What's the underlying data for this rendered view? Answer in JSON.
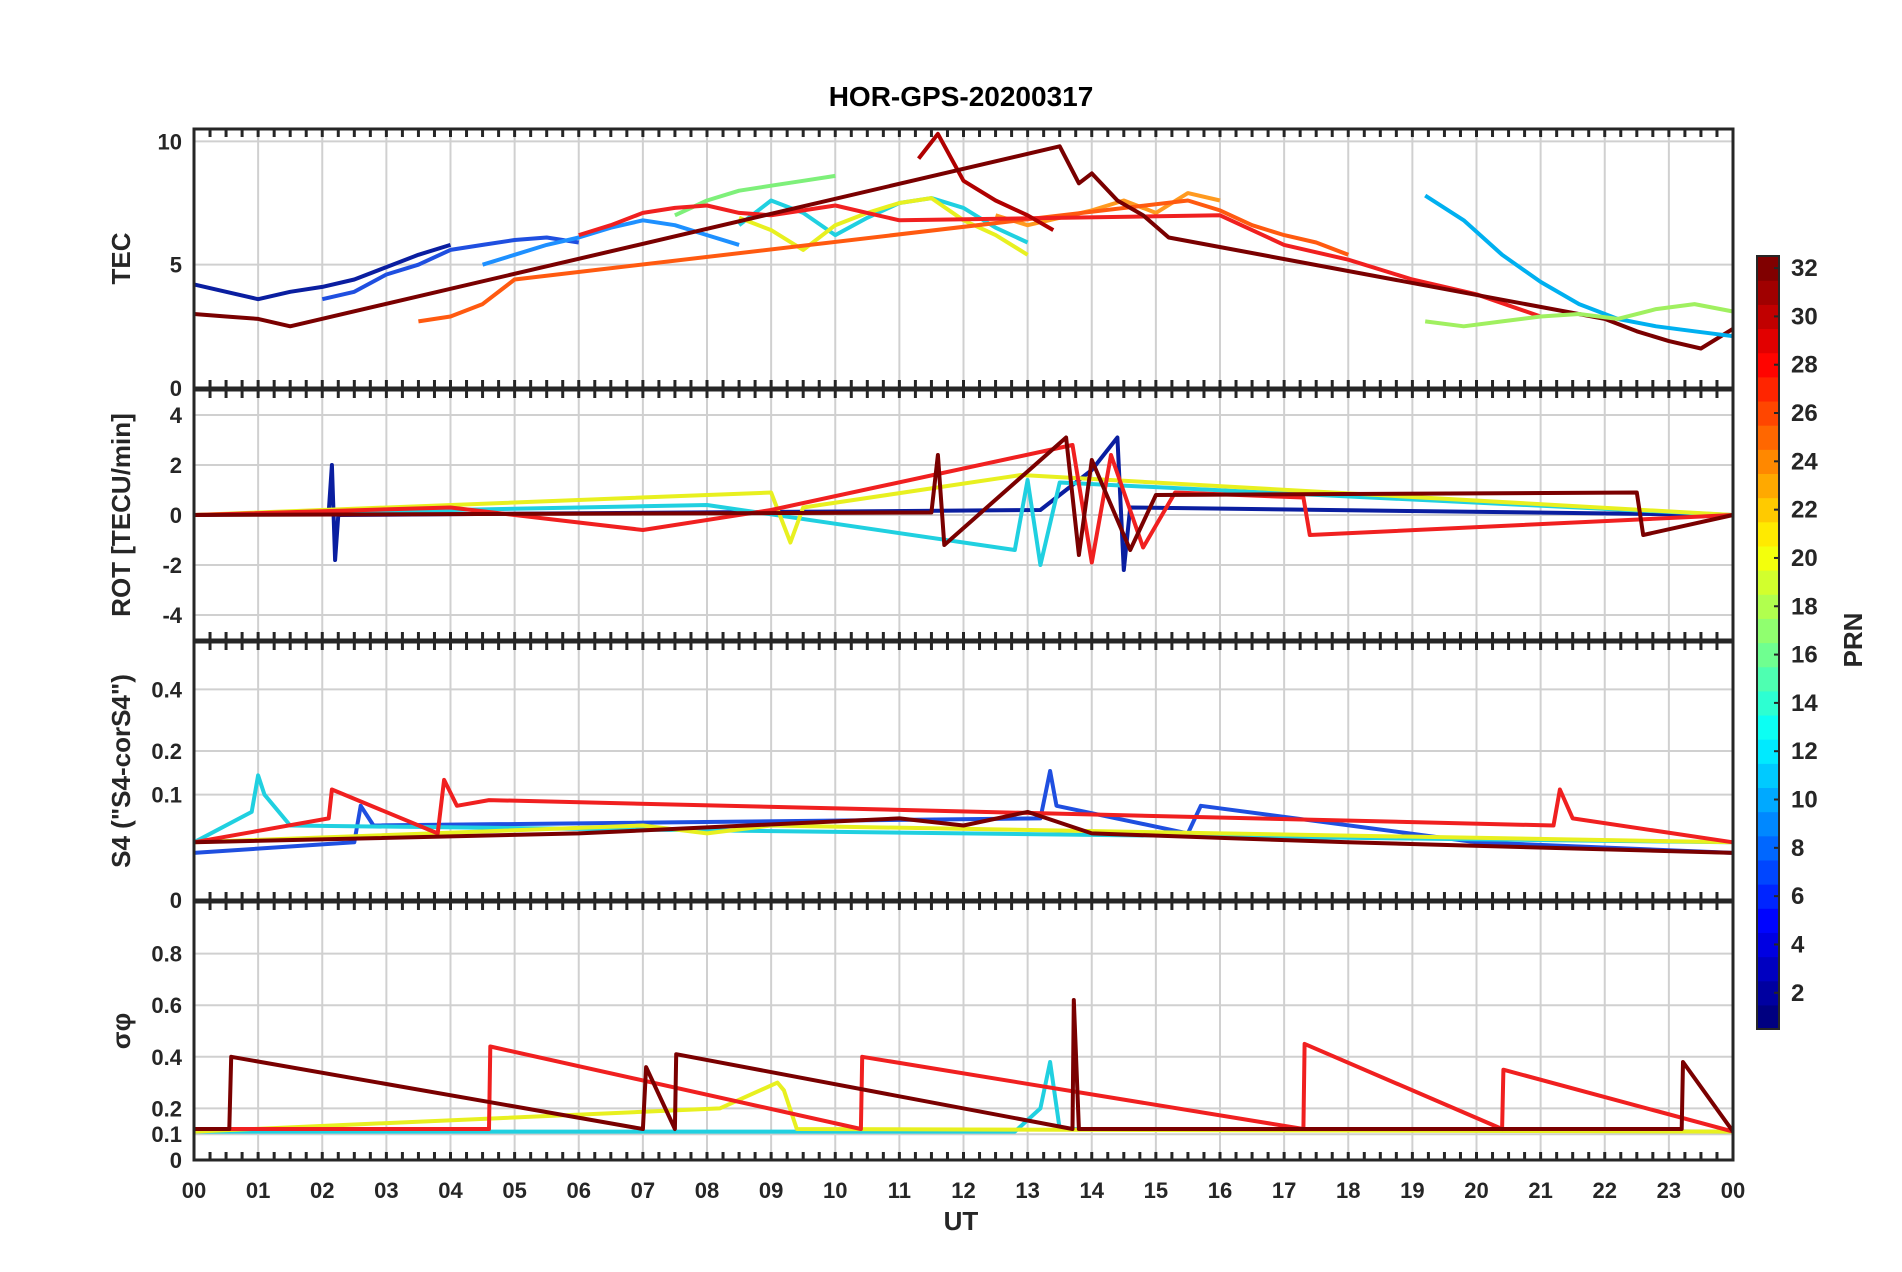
{
  "figure": {
    "title": "HOR-GPS-20200317",
    "xlabel": "UT"
  },
  "chart_data": [
    {
      "type": "line",
      "panel": "tec",
      "ylabel": "TEC",
      "ylim": [
        0,
        10.5
      ],
      "yticks": [
        0,
        5,
        10
      ],
      "xlim": [
        0,
        24
      ],
      "series": [
        {
          "name": "PRN 2",
          "color": "#0a1ea0",
          "x": [
            0,
            0.5,
            1,
            1.5,
            2,
            2.5,
            3,
            3.5,
            4
          ],
          "y": [
            4.2,
            3.9,
            3.6,
            3.9,
            4.1,
            4.4,
            4.9,
            5.4,
            5.8
          ]
        },
        {
          "name": "PRN 5",
          "color": "#1f4fe0",
          "x": [
            2,
            2.5,
            3,
            3.5,
            4,
            4.5,
            5,
            5.5,
            6
          ],
          "y": [
            3.6,
            3.9,
            4.6,
            5.0,
            5.6,
            5.8,
            6.0,
            6.1,
            5.9
          ]
        },
        {
          "name": "PRN 9",
          "color": "#1e90ff",
          "x": [
            4.5,
            5,
            5.5,
            6,
            6.5,
            7,
            7.5,
            8,
            8.5
          ],
          "y": [
            5.0,
            5.4,
            5.8,
            6.1,
            6.5,
            6.8,
            6.6,
            6.2,
            5.8
          ]
        },
        {
          "name": "PRN 13",
          "color": "#20d0e0",
          "x": [
            8.5,
            9,
            9.5,
            10,
            10.5,
            11,
            11.5,
            12,
            12.5,
            13
          ],
          "y": [
            6.6,
            7.6,
            7.1,
            6.2,
            6.9,
            7.5,
            7.7,
            7.3,
            6.5,
            5.9
          ]
        },
        {
          "name": "PRN 17",
          "color": "#7ef07a",
          "x": [
            7.5,
            8,
            8.5,
            9,
            9.5,
            10
          ],
          "y": [
            7.0,
            7.6,
            8.0,
            8.2,
            8.4,
            8.6
          ]
        },
        {
          "name": "PRN 20",
          "color": "#e8f020",
          "x": [
            8.5,
            9,
            9.5,
            10,
            10.5,
            11,
            11.5,
            12,
            12.5,
            13
          ],
          "y": [
            6.9,
            6.4,
            5.6,
            6.6,
            7.1,
            7.5,
            7.7,
            6.8,
            6.2,
            5.4
          ]
        },
        {
          "name": "PRN 23",
          "color": "#ff9a20",
          "x": [
            12.5,
            13,
            13.5,
            14,
            14.5,
            15,
            15.5,
            16
          ],
          "y": [
            7.0,
            6.6,
            6.9,
            7.2,
            7.6,
            7.1,
            7.9,
            7.6
          ]
        },
        {
          "name": "PRN 26",
          "color": "#ff5a10",
          "x": [
            3.5,
            4,
            4.5,
            5,
            15.5,
            16,
            16.5,
            17,
            17.5,
            18
          ],
          "y": [
            2.7,
            2.9,
            3.4,
            4.4,
            7.6,
            7.2,
            6.6,
            6.2,
            5.9,
            5.4
          ]
        },
        {
          "name": "PRN 28",
          "color": "#f02020",
          "x": [
            6,
            6.5,
            7,
            7.5,
            8,
            8.5,
            9,
            9.5,
            10,
            10.5,
            11,
            16,
            17,
            18,
            19,
            20,
            21
          ],
          "y": [
            6.2,
            6.6,
            7.1,
            7.3,
            7.4,
            7.1,
            7.0,
            7.2,
            7.4,
            7.1,
            6.8,
            7.0,
            5.8,
            5.2,
            4.4,
            3.8,
            2.9
          ]
        },
        {
          "name": "PRN 31",
          "color": "#b00000",
          "x": [
            11.3,
            11.6,
            12,
            12.5,
            13,
            13.4
          ],
          "y": [
            9.3,
            10.3,
            8.4,
            7.6,
            7.0,
            6.4
          ]
        },
        {
          "name": "PRN 32",
          "color": "#7a0000",
          "x": [
            0,
            0.5,
            1,
            1.5,
            13.5,
            13.8,
            14,
            14.4,
            14.8,
            15.2,
            22,
            22.5,
            23,
            23.5,
            24
          ],
          "y": [
            3.0,
            2.9,
            2.8,
            2.5,
            9.8,
            8.3,
            8.7,
            7.6,
            7.0,
            6.1,
            2.8,
            2.3,
            1.9,
            1.6,
            2.4
          ]
        },
        {
          "name": "PRN 11",
          "color": "#00b0f0",
          "x": [
            19.2,
            19.8,
            20.4,
            21,
            21.6,
            22.2,
            22.8,
            23.4,
            24
          ],
          "y": [
            7.8,
            6.8,
            5.4,
            4.3,
            3.4,
            2.8,
            2.5,
            2.3,
            2.1
          ]
        },
        {
          "name": "PRN 18",
          "color": "#a0f060",
          "x": [
            19.2,
            19.8,
            20.4,
            21,
            21.6,
            22.2,
            22.8,
            23.4,
            24
          ],
          "y": [
            2.7,
            2.5,
            2.7,
            2.9,
            3.0,
            2.8,
            3.2,
            3.4,
            3.1
          ]
        }
      ]
    },
    {
      "type": "line",
      "panel": "rot",
      "ylabel": "ROT [TECU/min]",
      "ylim": [
        -5,
        5
      ],
      "yticks": [
        -4,
        -2,
        0,
        2,
        4
      ],
      "xlim": [
        0,
        24
      ],
      "series": [
        {
          "name": "PRN 3",
          "color": "#0a1ea0",
          "x": [
            0,
            2.1,
            2.15,
            2.2,
            2.25,
            13.2,
            14.0,
            14.4,
            14.5,
            14.6,
            24
          ],
          "y": [
            0.0,
            0.1,
            2.0,
            -1.8,
            0.0,
            0.2,
            1.8,
            3.1,
            -2.2,
            0.3,
            0.0
          ]
        },
        {
          "name": "PRN 14",
          "color": "#20d0e0",
          "x": [
            0,
            8,
            12.8,
            13.0,
            13.2,
            13.5,
            24
          ],
          "y": [
            0.0,
            0.4,
            -1.4,
            1.4,
            -2.0,
            1.3,
            0.0
          ]
        },
        {
          "name": "PRN 20",
          "color": "#e8f020",
          "x": [
            0,
            9.0,
            9.3,
            9.5,
            12.9,
            24
          ],
          "y": [
            0.0,
            0.9,
            -1.1,
            0.3,
            1.6,
            0.0
          ]
        },
        {
          "name": "PRN 28",
          "color": "#f02020",
          "x": [
            0,
            4,
            7,
            9,
            13.7,
            14.0,
            14.3,
            14.8,
            15.3,
            17.3,
            17.4,
            24
          ],
          "y": [
            0.0,
            0.3,
            -0.6,
            0.2,
            2.8,
            -1.9,
            2.4,
            -1.3,
            0.9,
            0.7,
            -0.8,
            0.0
          ]
        },
        {
          "name": "PRN 32",
          "color": "#7a0000",
          "x": [
            0,
            11.5,
            11.6,
            11.7,
            13.6,
            13.8,
            14.0,
            14.6,
            15.0,
            22.5,
            22.6,
            24
          ],
          "y": [
            0.0,
            0.1,
            2.4,
            -1.2,
            3.1,
            -1.6,
            2.2,
            -1.4,
            0.8,
            0.9,
            -0.8,
            0.0
          ]
        }
      ]
    },
    {
      "type": "line",
      "panel": "s4",
      "ylabel": "S4 (\"S4-corS4\")",
      "ylim": [
        0,
        0.6
      ],
      "yticks": [
        0,
        0.1,
        0.2,
        0.4
      ],
      "xlim": [
        0,
        24
      ],
      "series": [
        {
          "name": "PRN 4",
          "color": "#1f4fe0",
          "x": [
            0,
            2.5,
            2.6,
            2.8,
            13.2,
            13.35,
            13.45,
            15.5,
            15.7,
            20,
            24
          ],
          "y": [
            0.02,
            0.03,
            0.08,
            0.05,
            0.06,
            0.15,
            0.08,
            0.04,
            0.08,
            0.03,
            0.02
          ]
        },
        {
          "name": "PRN 12",
          "color": "#20d0e0",
          "x": [
            0,
            0.9,
            1.0,
            1.1,
            1.5,
            24
          ],
          "y": [
            0.03,
            0.07,
            0.14,
            0.1,
            0.05,
            0.03
          ]
        },
        {
          "name": "PRN 19",
          "color": "#e8f020",
          "x": [
            0,
            7,
            8,
            9,
            24
          ],
          "y": [
            0.03,
            0.05,
            0.04,
            0.05,
            0.03
          ]
        },
        {
          "name": "PRN 26",
          "color": "#f02020",
          "x": [
            0,
            2.1,
            2.15,
            3.8,
            3.9,
            4.1,
            4.6,
            21.2,
            21.3,
            21.5,
            24
          ],
          "y": [
            0.03,
            0.06,
            0.11,
            0.04,
            0.13,
            0.08,
            0.09,
            0.05,
            0.11,
            0.06,
            0.03
          ]
        },
        {
          "name": "PRN 32",
          "color": "#7a0000",
          "x": [
            0,
            6,
            11,
            12,
            13,
            14,
            18,
            24
          ],
          "y": [
            0.03,
            0.04,
            0.06,
            0.05,
            0.07,
            0.04,
            0.03,
            0.02
          ]
        }
      ]
    },
    {
      "type": "line",
      "panel": "sigma",
      "ylabel": "σφ",
      "ylim": [
        0,
        1.0
      ],
      "yticks": [
        0,
        0.1,
        0.2,
        0.4,
        0.6,
        0.8
      ],
      "xlim": [
        0,
        24
      ],
      "series": [
        {
          "name": "PRN 14",
          "color": "#20d0e0",
          "x": [
            0,
            12.8,
            13.2,
            13.35,
            13.5,
            24
          ],
          "y": [
            0.11,
            0.11,
            0.2,
            0.38,
            0.12,
            0.11
          ]
        },
        {
          "name": "PRN 20",
          "color": "#e8f020",
          "x": [
            0,
            8.2,
            9.1,
            9.2,
            9.4,
            24
          ],
          "y": [
            0.11,
            0.2,
            0.3,
            0.27,
            0.12,
            0.11
          ]
        },
        {
          "name": "PRN 26",
          "color": "#f02020",
          "x": [
            0,
            4.6,
            4.62,
            10.4,
            10.42,
            17.3,
            17.32,
            20.4,
            20.42,
            24
          ],
          "y": [
            0.12,
            0.12,
            0.44,
            0.12,
            0.4,
            0.12,
            0.45,
            0.12,
            0.35,
            0.11
          ]
        },
        {
          "name": "PRN 32",
          "color": "#7a0000",
          "x": [
            0,
            0.55,
            0.58,
            7.0,
            7.05,
            7.5,
            7.52,
            13.7,
            13.72,
            13.8,
            23.2,
            23.22,
            24
          ],
          "y": [
            0.12,
            0.12,
            0.4,
            0.12,
            0.36,
            0.12,
            0.41,
            0.12,
            0.62,
            0.12,
            0.12,
            0.38,
            0.11
          ]
        }
      ]
    }
  ],
  "colorbar": {
    "label": "PRN",
    "min": 1,
    "max": 32,
    "ticks": [
      2,
      4,
      6,
      8,
      10,
      12,
      14,
      16,
      18,
      20,
      22,
      24,
      26,
      28,
      30,
      32
    ]
  },
  "x_axis": {
    "ticks": [
      0,
      1,
      2,
      3,
      4,
      5,
      6,
      7,
      8,
      9,
      10,
      11,
      12,
      13,
      14,
      15,
      16,
      17,
      18,
      19,
      20,
      21,
      22,
      23,
      24
    ],
    "tick_labels": [
      "00",
      "01",
      "02",
      "03",
      "04",
      "05",
      "06",
      "07",
      "08",
      "09",
      "10",
      "11",
      "12",
      "13",
      "14",
      "15",
      "16",
      "17",
      "18",
      "19",
      "20",
      "21",
      "22",
      "23",
      "00"
    ]
  }
}
